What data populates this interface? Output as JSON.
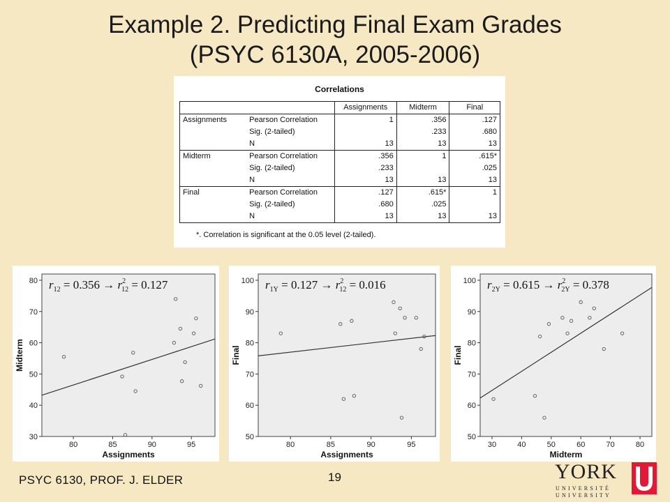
{
  "title_line1": "Example 2.  Predicting Final Exam Grades",
  "title_line2": "(PSYC 6130A, 2005-2006)",
  "correlations": {
    "title": "Correlations",
    "columns": [
      "Assignments",
      "Midterm",
      "Final"
    ],
    "groups": [
      {
        "label": "Assignments",
        "rows": [
          {
            "stat": "Pearson Correlation",
            "vals": [
              "1",
              ".356",
              ".127"
            ]
          },
          {
            "stat": "Sig. (2-tailed)",
            "vals": [
              "",
              ".233",
              ".680"
            ]
          },
          {
            "stat": "N",
            "vals": [
              "13",
              "13",
              "13"
            ]
          }
        ]
      },
      {
        "label": "Midterm",
        "rows": [
          {
            "stat": "Pearson Correlation",
            "vals": [
              ".356",
              "1",
              ".615*"
            ]
          },
          {
            "stat": "Sig. (2-tailed)",
            "vals": [
              ".233",
              "",
              ".025"
            ]
          },
          {
            "stat": "N",
            "vals": [
              "13",
              "13",
              "13"
            ]
          }
        ]
      },
      {
        "label": "Final",
        "rows": [
          {
            "stat": "Pearson Correlation",
            "vals": [
              ".127",
              ".615*",
              "1"
            ]
          },
          {
            "stat": "Sig. (2-tailed)",
            "vals": [
              ".680",
              ".025",
              ""
            ]
          },
          {
            "stat": "N",
            "vals": [
              "13",
              "13",
              "13"
            ]
          }
        ]
      }
    ],
    "note": "*. Correlation is significant at the 0.05 level (2-tailed)."
  },
  "chart_data": [
    {
      "type": "scatter",
      "xlabel": "Assignments",
      "ylabel": "Midterm",
      "xlim": [
        76,
        98
      ],
      "ylim": [
        30,
        82
      ],
      "xticks": [
        80,
        85,
        90,
        95
      ],
      "yticks": [
        30,
        40,
        50,
        60,
        70,
        80
      ],
      "annotation": {
        "lhs": "r",
        "lhs_sub": "12",
        "mid": " = 0.356 → ",
        "rhs": "r",
        "rhs_sub": "12",
        "rhs_sup": "2",
        "end": " = 0.127"
      },
      "points": [
        [
          78.8,
          55.5
        ],
        [
          86.2,
          49.2
        ],
        [
          86.6,
          30.5
        ],
        [
          87.6,
          56.8
        ],
        [
          87.9,
          44.5
        ],
        [
          92.8,
          60.0
        ],
        [
          93.0,
          74.0
        ],
        [
          93.6,
          64.5
        ],
        [
          93.8,
          47.7
        ],
        [
          94.2,
          53.8
        ],
        [
          95.3,
          63.0
        ],
        [
          95.6,
          67.8
        ],
        [
          96.2,
          46.2
        ]
      ],
      "fit": [
        [
          76,
          43.2
        ],
        [
          98,
          61.2
        ]
      ]
    },
    {
      "type": "scatter",
      "xlabel": "Assignments",
      "ylabel": "Final",
      "xlim": [
        76,
        98
      ],
      "ylim": [
        50,
        102
      ],
      "xticks": [
        80,
        85,
        90,
        95
      ],
      "yticks": [
        50,
        60,
        70,
        80,
        90,
        100
      ],
      "annotation": {
        "lhs": "r",
        "lhs_sub": "1Y",
        "mid": " = 0.127 → ",
        "rhs": "r",
        "rhs_sub": "12",
        "rhs_sup": "2",
        "end": " = 0.016"
      },
      "points": [
        [
          78.8,
          83
        ],
        [
          86.2,
          86
        ],
        [
          86.6,
          62
        ],
        [
          87.6,
          87
        ],
        [
          87.9,
          63
        ],
        [
          92.8,
          93
        ],
        [
          93.0,
          83
        ],
        [
          93.6,
          91
        ],
        [
          93.8,
          56
        ],
        [
          94.2,
          88
        ],
        [
          95.6,
          88
        ],
        [
          96.2,
          78
        ],
        [
          96.6,
          82
        ]
      ],
      "fit": [
        [
          76,
          75.8
        ],
        [
          98,
          82.3
        ]
      ]
    },
    {
      "type": "scatter",
      "xlabel": "Midterm",
      "ylabel": "Final",
      "xlim": [
        26,
        84
      ],
      "ylim": [
        50,
        102
      ],
      "xticks": [
        30,
        40,
        50,
        60,
        70,
        80
      ],
      "yticks": [
        50,
        60,
        70,
        80,
        90,
        100
      ],
      "annotation": {
        "lhs": "r",
        "lhs_sub": "2Y",
        "mid": " = 0.615 → ",
        "rhs": "r",
        "rhs_sub": "2Y",
        "rhs_sup": "2",
        "end": " = 0.378"
      },
      "points": [
        [
          30.5,
          62
        ],
        [
          44.5,
          63
        ],
        [
          46.2,
          82
        ],
        [
          47.7,
          56
        ],
        [
          49.2,
          86
        ],
        [
          53.8,
          88
        ],
        [
          55.5,
          83
        ],
        [
          56.8,
          87
        ],
        [
          60.0,
          93
        ],
        [
          63.0,
          88
        ],
        [
          64.5,
          91
        ],
        [
          67.8,
          78
        ],
        [
          74.0,
          83
        ]
      ],
      "fit": [
        [
          26,
          62.3
        ],
        [
          84,
          97.7
        ]
      ]
    }
  ],
  "footer": {
    "course": "PSYC 6130, PROF. J. ELDER",
    "page": "19"
  },
  "logo": {
    "word": "YORK",
    "line1": "UNIVERSITÉ",
    "line2": "UNIVERSITY",
    "color": "#e31837"
  }
}
